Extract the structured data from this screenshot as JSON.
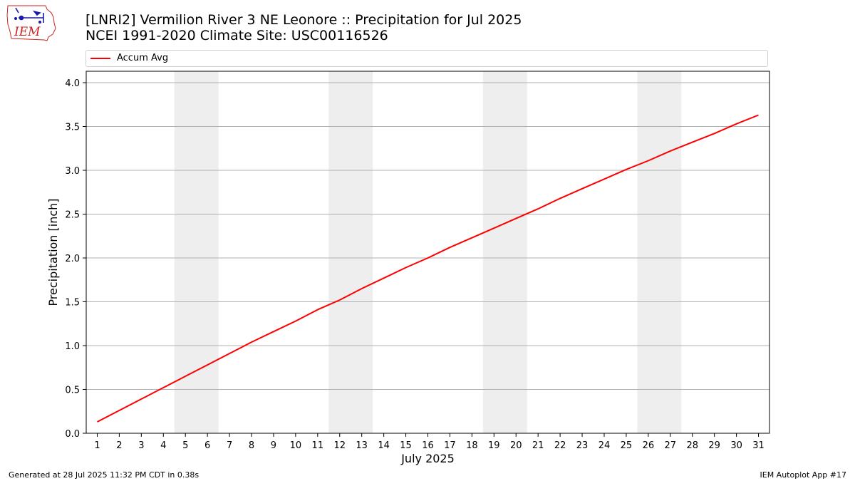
{
  "header": {
    "logo_text": "IEM",
    "title_line1": "[LNRI2] Vermilion River 3 NE Leonore :: Precipitation for Jul 2025",
    "title_line2": "NCEI 1991-2020 Climate Site: USC00116526"
  },
  "footer": {
    "generated": "Generated at 28 Jul 2025 11:32 PM CDT in 0.38s",
    "app": "IEM Autoplot App #17"
  },
  "colors": {
    "series_line": "#ff0000",
    "weekend_shade": "#eeeeee",
    "grid": "#b0b0b0",
    "logo_red": "#cc2222",
    "logo_blue": "#1a1aa8"
  },
  "chart_data": {
    "type": "line",
    "xlabel": "July 2025",
    "ylabel": "Precipitation [inch]",
    "xlim": [
      0.5,
      31.5
    ],
    "ylim": [
      0,
      4.13
    ],
    "x": [
      1,
      2,
      3,
      4,
      5,
      6,
      7,
      8,
      9,
      10,
      11,
      12,
      13,
      14,
      15,
      16,
      17,
      18,
      19,
      20,
      21,
      22,
      23,
      24,
      25,
      26,
      27,
      28,
      29,
      30,
      31
    ],
    "x_tick_labels": [
      "1",
      "2",
      "3",
      "4",
      "5",
      "6",
      "7",
      "8",
      "9",
      "10",
      "11",
      "12",
      "13",
      "14",
      "15",
      "16",
      "17",
      "18",
      "19",
      "20",
      "21",
      "22",
      "23",
      "24",
      "25",
      "26",
      "27",
      "28",
      "29",
      "30",
      "31"
    ],
    "y_ticks": [
      0.0,
      0.5,
      1.0,
      1.5,
      2.0,
      2.5,
      3.0,
      3.5,
      4.0
    ],
    "y_tick_labels": [
      "0.0",
      "0.5",
      "1.0",
      "1.5",
      "2.0",
      "2.5",
      "3.0",
      "3.5",
      "4.0"
    ],
    "grid": "horizontal",
    "legend_position": "top, above plot",
    "shaded_day_ranges": [
      [
        5,
        6
      ],
      [
        12,
        13
      ],
      [
        19,
        20
      ],
      [
        26,
        27
      ]
    ],
    "series": [
      {
        "name": "Accum Avg",
        "color": "#ff0000",
        "values": [
          0.13,
          0.26,
          0.39,
          0.52,
          0.65,
          0.78,
          0.91,
          1.04,
          1.16,
          1.28,
          1.41,
          1.52,
          1.65,
          1.77,
          1.89,
          2.0,
          2.12,
          2.23,
          2.34,
          2.45,
          2.56,
          2.68,
          2.79,
          2.9,
          3.01,
          3.11,
          3.22,
          3.32,
          3.42,
          3.53,
          3.63
        ]
      }
    ]
  }
}
